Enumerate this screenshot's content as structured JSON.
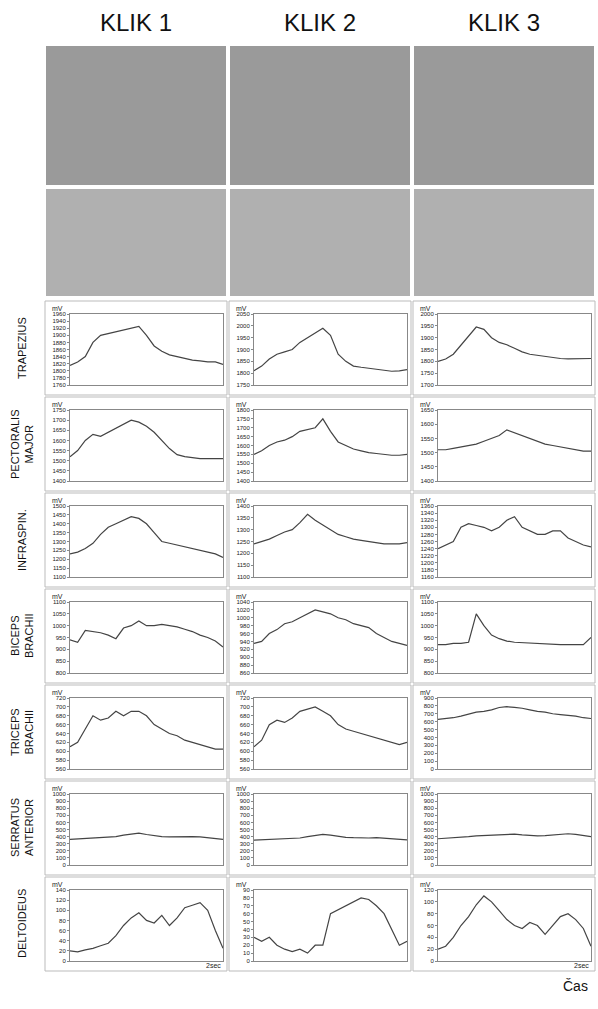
{
  "columns": [
    "KLIK 1",
    "KLIK 2",
    "KLIK 3"
  ],
  "rows": [
    "TRAPEZIUS",
    "PECTORALIS MAJOR",
    "INFRASPIN.",
    "BICEPS BRACHII",
    "TRICEPS BRACHII",
    "SERRATUS ANTERIOR",
    "DELTOIDEUS"
  ],
  "x_label": "Čas",
  "x": [
    0,
    0.1,
    0.2,
    0.3,
    0.4,
    0.5,
    0.6,
    0.7,
    0.8,
    0.9,
    1.0,
    1.1,
    1.2,
    1.3,
    1.4,
    1.5,
    1.6,
    1.7,
    1.8,
    1.9,
    2.0
  ],
  "xlim": [
    0,
    2
  ],
  "chart_data": [
    {
      "type": "line",
      "y_label": "mV",
      "color": "#444444",
      "tick_labels": "y",
      "grid": false,
      "values": [
        1815,
        1825,
        1840,
        1880,
        1900,
        1905,
        1910,
        1915,
        1920,
        1925,
        1900,
        1870,
        1855,
        1845,
        1840,
        1835,
        1830,
        1828,
        1825,
        1825,
        1818
      ],
      "ylim": [
        1760,
        1960
      ],
      "yticks": [
        1760,
        1780,
        1800,
        1820,
        1840,
        1860,
        1880,
        1900,
        1920,
        1940,
        1960
      ]
    },
    {
      "type": "line",
      "y_label": "mV",
      "color": "#444444",
      "tick_labels": "y",
      "grid": false,
      "values": [
        1810,
        1830,
        1860,
        1880,
        1890,
        1900,
        1930,
        1950,
        1970,
        1990,
        1960,
        1880,
        1850,
        1830,
        1825,
        1820,
        1815,
        1810,
        1808,
        1810,
        1815
      ],
      "ylim": [
        1750,
        2050
      ],
      "yticks": [
        1750,
        1800,
        1850,
        1900,
        1950,
        2000,
        2050
      ]
    },
    {
      "type": "line",
      "y_label": "mV",
      "color": "#444444",
      "tick_labels": "y",
      "grid": false,
      "values": [
        1800,
        1810,
        1830,
        1870,
        1910,
        1945,
        1935,
        1900,
        1880,
        1870,
        1855,
        1840,
        1830,
        1825,
        1820,
        1815,
        1812,
        1810,
        1810,
        1810,
        1812
      ],
      "ylim": [
        1700,
        2000
      ],
      "yticks": [
        1700,
        1750,
        1800,
        1850,
        1900,
        1950,
        2000
      ]
    },
    {
      "type": "line",
      "y_label": "mV",
      "color": "#444444",
      "tick_labels": "y",
      "grid": false,
      "values": [
        1520,
        1550,
        1600,
        1630,
        1620,
        1640,
        1660,
        1680,
        1700,
        1690,
        1670,
        1640,
        1600,
        1560,
        1530,
        1520,
        1515,
        1510,
        1510,
        1510,
        1510
      ],
      "ylim": [
        1400,
        1750
      ],
      "yticks": [
        1400,
        1450,
        1500,
        1550,
        1600,
        1650,
        1700,
        1750
      ]
    },
    {
      "type": "line",
      "y_label": "mV",
      "color": "#444444",
      "tick_labels": "y",
      "grid": false,
      "values": [
        1550,
        1570,
        1600,
        1620,
        1630,
        1650,
        1680,
        1690,
        1700,
        1750,
        1680,
        1620,
        1600,
        1580,
        1570,
        1560,
        1555,
        1550,
        1545,
        1545,
        1550
      ],
      "ylim": [
        1400,
        1800
      ],
      "yticks": [
        1400,
        1450,
        1500,
        1550,
        1600,
        1650,
        1700,
        1750,
        1800
      ]
    },
    {
      "type": "line",
      "y_label": "mV",
      "color": "#444444",
      "tick_labels": "y",
      "grid": false,
      "values": [
        1510,
        1510,
        1515,
        1520,
        1525,
        1530,
        1540,
        1550,
        1560,
        1580,
        1570,
        1560,
        1550,
        1540,
        1530,
        1525,
        1520,
        1515,
        1510,
        1505,
        1505
      ],
      "ylim": [
        1400,
        1650
      ],
      "yticks": [
        1400,
        1450,
        1500,
        1550,
        1600,
        1650
      ]
    },
    {
      "type": "line",
      "y_label": "mV",
      "color": "#444444",
      "tick_labels": "y",
      "grid": false,
      "values": [
        1230,
        1240,
        1260,
        1290,
        1340,
        1380,
        1400,
        1420,
        1440,
        1430,
        1400,
        1350,
        1300,
        1290,
        1280,
        1270,
        1260,
        1250,
        1240,
        1230,
        1210
      ],
      "ylim": [
        1100,
        1500
      ],
      "yticks": [
        1100,
        1150,
        1200,
        1250,
        1300,
        1350,
        1400,
        1450,
        1500
      ]
    },
    {
      "type": "line",
      "y_label": "mV",
      "color": "#444444",
      "tick_labels": "y",
      "grid": false,
      "values": [
        1240,
        1250,
        1260,
        1275,
        1290,
        1300,
        1330,
        1365,
        1340,
        1320,
        1300,
        1280,
        1270,
        1260,
        1255,
        1250,
        1245,
        1240,
        1240,
        1240,
        1245
      ],
      "ylim": [
        1100,
        1400
      ],
      "yticks": [
        1100,
        1150,
        1200,
        1250,
        1300,
        1350,
        1400
      ]
    },
    {
      "type": "line",
      "y_label": "mV",
      "color": "#444444",
      "tick_labels": "y",
      "grid": false,
      "values": [
        1240,
        1250,
        1260,
        1300,
        1310,
        1305,
        1300,
        1290,
        1300,
        1320,
        1330,
        1300,
        1290,
        1280,
        1280,
        1290,
        1290,
        1270,
        1260,
        1250,
        1245
      ],
      "ylim": [
        1160,
        1360
      ],
      "yticks": [
        1160,
        1180,
        1200,
        1220,
        1240,
        1260,
        1280,
        1300,
        1320,
        1340,
        1360
      ]
    },
    {
      "type": "line",
      "y_label": "mV",
      "color": "#444444",
      "tick_labels": "y",
      "grid": false,
      "values": [
        940,
        930,
        980,
        975,
        970,
        960,
        945,
        990,
        1000,
        1020,
        1000,
        1000,
        1005,
        1000,
        995,
        985,
        975,
        960,
        950,
        935,
        910
      ],
      "ylim": [
        800,
        1100
      ],
      "yticks": [
        800,
        850,
        900,
        950,
        1000,
        1050,
        1100
      ]
    },
    {
      "type": "line",
      "y_label": "mV",
      "color": "#444444",
      "tick_labels": "y",
      "grid": false,
      "values": [
        935,
        940,
        960,
        970,
        985,
        990,
        1000,
        1010,
        1020,
        1015,
        1010,
        1000,
        995,
        985,
        980,
        975,
        960,
        950,
        940,
        935,
        930
      ],
      "ylim": [
        860,
        1040
      ],
      "yticks": [
        860,
        880,
        900,
        920,
        940,
        960,
        980,
        1000,
        1020,
        1040
      ]
    },
    {
      "type": "line",
      "y_label": "mV",
      "color": "#444444",
      "tick_labels": "y",
      "grid": false,
      "values": [
        920,
        920,
        925,
        925,
        930,
        1050,
        1000,
        960,
        945,
        935,
        930,
        928,
        925,
        925,
        922,
        922,
        920,
        920,
        920,
        920,
        950
      ],
      "ylim": [
        800,
        1100
      ],
      "yticks": [
        800,
        850,
        900,
        950,
        1000,
        1050,
        1100
      ]
    },
    {
      "type": "line",
      "y_label": "mV",
      "color": "#444444",
      "tick_labels": "y",
      "grid": false,
      "values": [
        610,
        620,
        650,
        680,
        670,
        675,
        690,
        680,
        690,
        690,
        680,
        660,
        650,
        640,
        635,
        625,
        620,
        615,
        610,
        605,
        605
      ],
      "ylim": [
        560,
        720
      ],
      "yticks": [
        560,
        580,
        600,
        620,
        640,
        660,
        680,
        700,
        720
      ]
    },
    {
      "type": "line",
      "y_label": "mV",
      "color": "#444444",
      "tick_labels": "y",
      "grid": false,
      "values": [
        610,
        625,
        660,
        670,
        665,
        675,
        690,
        695,
        700,
        690,
        680,
        660,
        650,
        645,
        640,
        635,
        630,
        625,
        620,
        615,
        620
      ],
      "ylim": [
        560,
        720
      ],
      "yticks": [
        560,
        580,
        600,
        620,
        640,
        660,
        680,
        700,
        720
      ]
    },
    {
      "type": "line",
      "y_label": "mV",
      "color": "#444444",
      "tick_labels": "y",
      "grid": false,
      "values": [
        630,
        640,
        650,
        670,
        700,
        720,
        730,
        750,
        780,
        790,
        780,
        770,
        750,
        730,
        720,
        700,
        690,
        680,
        670,
        650,
        640
      ],
      "ylim": [
        0,
        900
      ],
      "yticks": [
        0,
        100,
        200,
        300,
        400,
        500,
        600,
        700,
        800,
        900
      ]
    },
    {
      "type": "line",
      "y_label": "mV",
      "color": "#444444",
      "tick_labels": "y",
      "grid": false,
      "values": [
        360,
        365,
        370,
        375,
        380,
        390,
        400,
        420,
        440,
        450,
        430,
        410,
        400,
        395,
        400,
        405,
        400,
        395,
        385,
        370,
        360
      ],
      "ylim": [
        0,
        1000
      ],
      "yticks": [
        0,
        100,
        200,
        300,
        400,
        500,
        600,
        700,
        800,
        900,
        1000
      ]
    },
    {
      "type": "line",
      "y_label": "mV",
      "color": "#444444",
      "tick_labels": "y",
      "grid": false,
      "values": [
        350,
        355,
        360,
        360,
        365,
        370,
        380,
        400,
        420,
        430,
        420,
        400,
        390,
        385,
        380,
        380,
        385,
        375,
        365,
        360,
        355
      ],
      "ylim": [
        0,
        1000
      ],
      "yticks": [
        0,
        100,
        200,
        300,
        400,
        500,
        600,
        700,
        800,
        900,
        1000
      ]
    },
    {
      "type": "line",
      "y_label": "mV",
      "color": "#444444",
      "tick_labels": "y",
      "grid": false,
      "values": [
        370,
        375,
        380,
        390,
        400,
        410,
        415,
        420,
        430,
        440,
        435,
        425,
        415,
        410,
        415,
        420,
        430,
        440,
        430,
        410,
        400
      ],
      "ylim": [
        0,
        1000
      ],
      "yticks": [
        0,
        100,
        200,
        300,
        400,
        500,
        600,
        700,
        800,
        900,
        1000
      ]
    },
    {
      "type": "line",
      "y_label": "mV",
      "color": "#444444",
      "tick_labels": "y",
      "grid": false,
      "values": [
        20,
        18,
        22,
        25,
        30,
        35,
        50,
        70,
        85,
        95,
        80,
        75,
        90,
        70,
        85,
        105,
        110,
        115,
        100,
        60,
        25
      ],
      "ylim": [
        0,
        140
      ],
      "yticks": [
        0,
        20,
        40,
        60,
        80,
        100,
        120,
        140
      ],
      "annotation": "2sec"
    },
    {
      "type": "line",
      "y_label": "mV",
      "color": "#444444",
      "tick_labels": "y",
      "grid": false,
      "values": [
        30,
        25,
        30,
        20,
        15,
        12,
        15,
        10,
        20,
        20,
        60,
        65,
        70,
        75,
        80,
        78,
        70,
        60,
        40,
        20,
        25
      ],
      "ylim": [
        0,
        90
      ],
      "yticks": [
        0,
        10,
        20,
        30,
        40,
        50,
        60,
        70,
        80,
        90
      ]
    },
    {
      "type": "line",
      "y_label": "mV",
      "color": "#444444",
      "tick_labels": "y",
      "grid": false,
      "values": [
        20,
        25,
        40,
        60,
        75,
        95,
        110,
        100,
        85,
        70,
        60,
        55,
        65,
        60,
        45,
        60,
        75,
        80,
        70,
        55,
        25
      ],
      "ylim": [
        0,
        120
      ],
      "yticks": [
        0,
        20,
        40,
        60,
        80,
        100,
        120
      ],
      "annotation": "2sec"
    }
  ]
}
